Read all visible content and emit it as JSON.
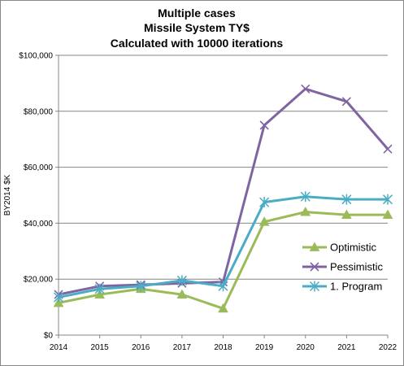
{
  "chart_data": {
    "type": "line",
    "title_lines": [
      "Multiple cases",
      "Missile System TY$",
      "Calculated with 10000 iterations"
    ],
    "xlabel": "",
    "ylabel": "BY2014 $K",
    "x": [
      2014,
      2015,
      2016,
      2017,
      2018,
      2019,
      2020,
      2021,
      2022
    ],
    "ylim": [
      0,
      100000
    ],
    "y_ticks": [
      0,
      20000,
      40000,
      60000,
      80000,
      100000
    ],
    "y_tick_labels": [
      "$0",
      "$20,000",
      "$40,000",
      "$60,000",
      "$80,000",
      "$100,000"
    ],
    "grid": "horizontal",
    "legend_position": "right",
    "series": [
      {
        "name": "Optimistic",
        "color": "#9bbb59",
        "marker": "triangle",
        "values": [
          11500,
          14500,
          16500,
          14500,
          9500,
          40500,
          44000,
          43000,
          43000
        ]
      },
      {
        "name": "Pessimistic",
        "color": "#8064a2",
        "marker": "x",
        "values": [
          14500,
          17500,
          18000,
          18500,
          19000,
          75000,
          88000,
          83500,
          66500
        ]
      },
      {
        "name": "1. Program",
        "color": "#4bacc6",
        "marker": "star",
        "values": [
          13500,
          16500,
          17500,
          19500,
          17500,
          47500,
          49500,
          48500,
          48500
        ]
      }
    ]
  }
}
